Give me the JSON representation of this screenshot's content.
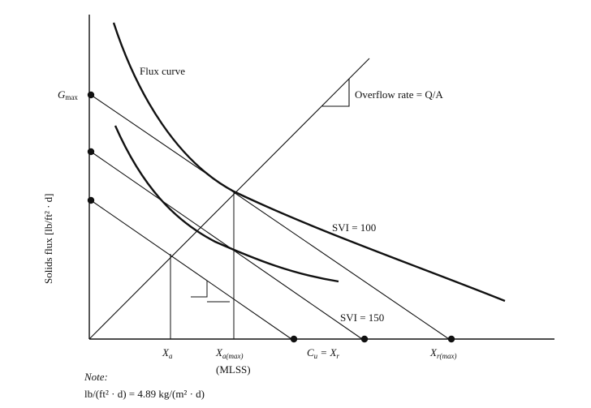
{
  "labels": {
    "flux_curve": "Flux curve",
    "overflow_rate": "Overflow rate = Q/A",
    "svi_100": "SVI = 100",
    "svi_150": "SVI = 150",
    "y_axis": "Solids flux [lb/ft² · d]",
    "gmax_main": "G",
    "gmax_sub": "max",
    "xa_main": "X",
    "xa_sub": "a",
    "xamax_main": "X",
    "xamax_sub": "a(max)",
    "mlss": "(MLSS)",
    "cu_main": "C",
    "cu_sub": "u",
    "cu_rest": " = X",
    "cu_sub2": "r",
    "xrmax_main": "X",
    "xrmax_sub": "r(max)",
    "note_title": "Note:",
    "note_body": "lb/(ft² · d) = 4.89 kg/(m² · d)"
  }
}
